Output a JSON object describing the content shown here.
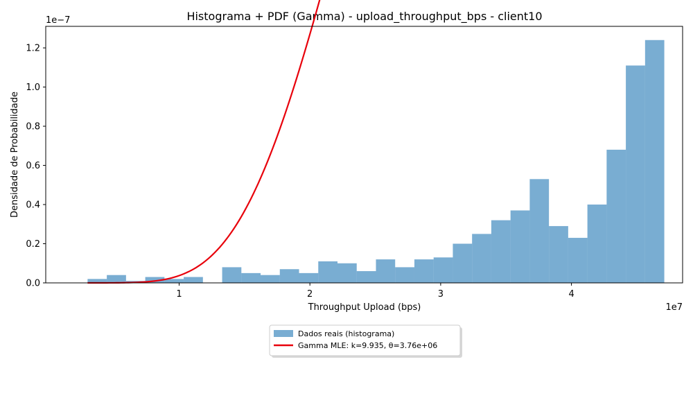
{
  "chart_data": {
    "type": "bar",
    "title": "Histograma + PDF (Gamma) - upload_throughput_bps - client10",
    "xlabel": "Throughput Upload (bps)",
    "ylabel": "Densidade de Probabilidade",
    "x_offset_text": "1e7",
    "y_offset_text": "1e−7",
    "x_scale_exponent": 7,
    "y_scale_exponent": -7,
    "xlim": [
      -0.2,
      48.5
    ],
    "ylim": [
      0,
      1.31
    ],
    "xticks": [
      10,
      20,
      30,
      40
    ],
    "xtick_labels": [
      "1",
      "2",
      "3",
      "4"
    ],
    "yticks": [
      0,
      0.2,
      0.4,
      0.6,
      0.8,
      1.0,
      1.2
    ],
    "ytick_labels": [
      "0.0",
      "0.2",
      "0.4",
      "0.6",
      "0.8",
      "1.0",
      "1.2"
    ],
    "histogram": {
      "name": "Dados reais (histograma)",
      "color": "#1f77b4",
      "alpha": 0.6,
      "bin_edges": [
        3.0,
        4.47,
        5.94,
        7.41,
        8.88,
        10.35,
        11.82,
        13.29,
        14.76,
        16.23,
        17.7,
        19.17,
        20.64,
        22.11,
        23.58,
        25.05,
        26.52,
        27.99,
        29.46,
        30.93,
        32.4,
        33.87,
        35.34,
        36.81,
        38.28,
        39.75,
        41.22,
        42.69,
        44.16,
        45.63,
        47.1
      ],
      "values": [
        0.02,
        0.04,
        0.01,
        0.03,
        0.02,
        0.03,
        0.0,
        0.08,
        0.05,
        0.04,
        0.07,
        0.05,
        0.11,
        0.1,
        0.06,
        0.12,
        0.08,
        0.12,
        0.13,
        0.2,
        0.25,
        0.32,
        0.37,
        0.53,
        0.29,
        0.23,
        0.4,
        0.68,
        1.11,
        1.24
      ]
    },
    "pdf": {
      "name": "Gamma MLE: k=9.935, θ=3.76e+06",
      "color": "#e8000b",
      "k": 9.935,
      "theta": 0.376
    },
    "legend_position": "bottom-center",
    "grid": false
  }
}
